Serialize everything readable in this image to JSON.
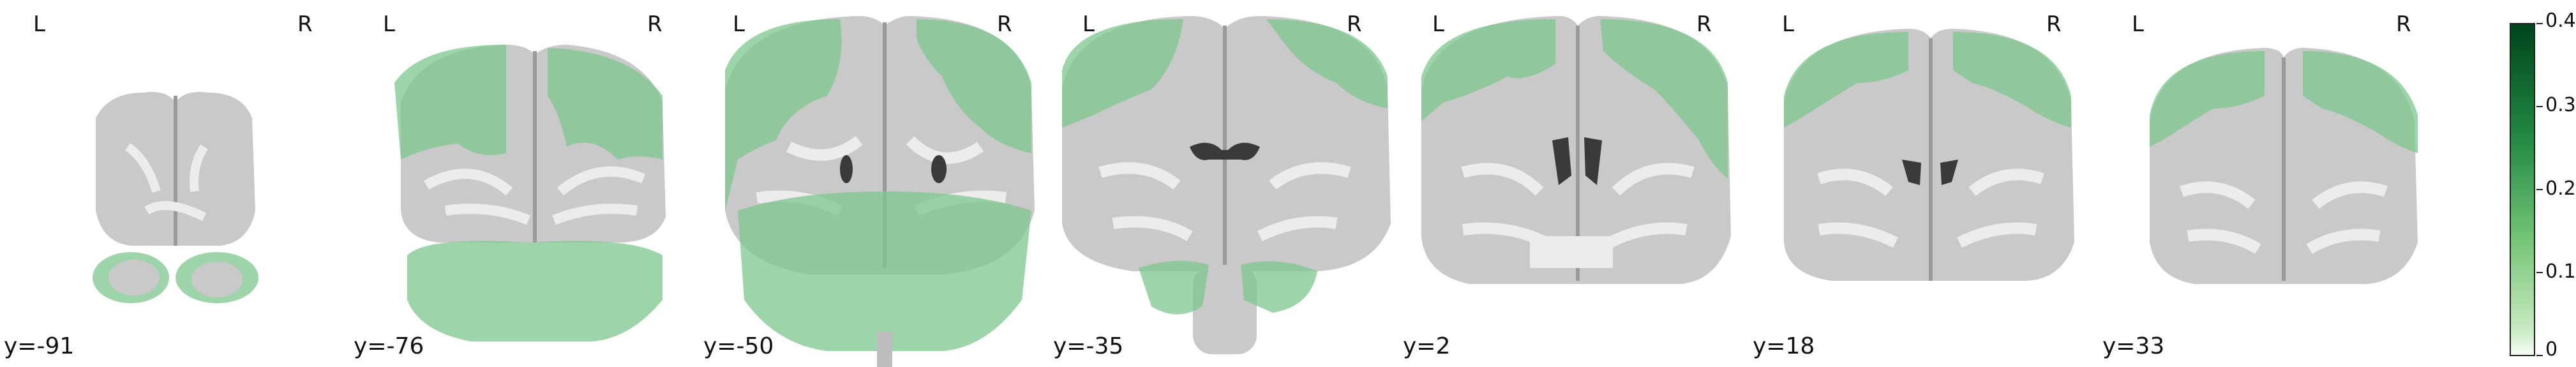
{
  "orientation": {
    "left": "L",
    "right": "R"
  },
  "slices": [
    {
      "coord_label": "y=-91"
    },
    {
      "coord_label": "y=-76"
    },
    {
      "coord_label": "y=-50"
    },
    {
      "coord_label": "y=-35"
    },
    {
      "coord_label": "y=2"
    },
    {
      "coord_label": "y=18"
    },
    {
      "coord_label": "y=33"
    }
  ],
  "colorbar": {
    "ticks": [
      "0.4",
      "0.3",
      "0.2",
      "0.1",
      "0"
    ],
    "min": 0,
    "max": 0.4,
    "colors": [
      "#00441b",
      "#238b45",
      "#74c476",
      "#c7e9c0",
      "#f7fcf5"
    ]
  },
  "colors": {
    "overlay": "#7cc58d",
    "brain": "#c9c9c9",
    "white_matter": "#ececec",
    "ventricle": "#3a3a3a"
  }
}
